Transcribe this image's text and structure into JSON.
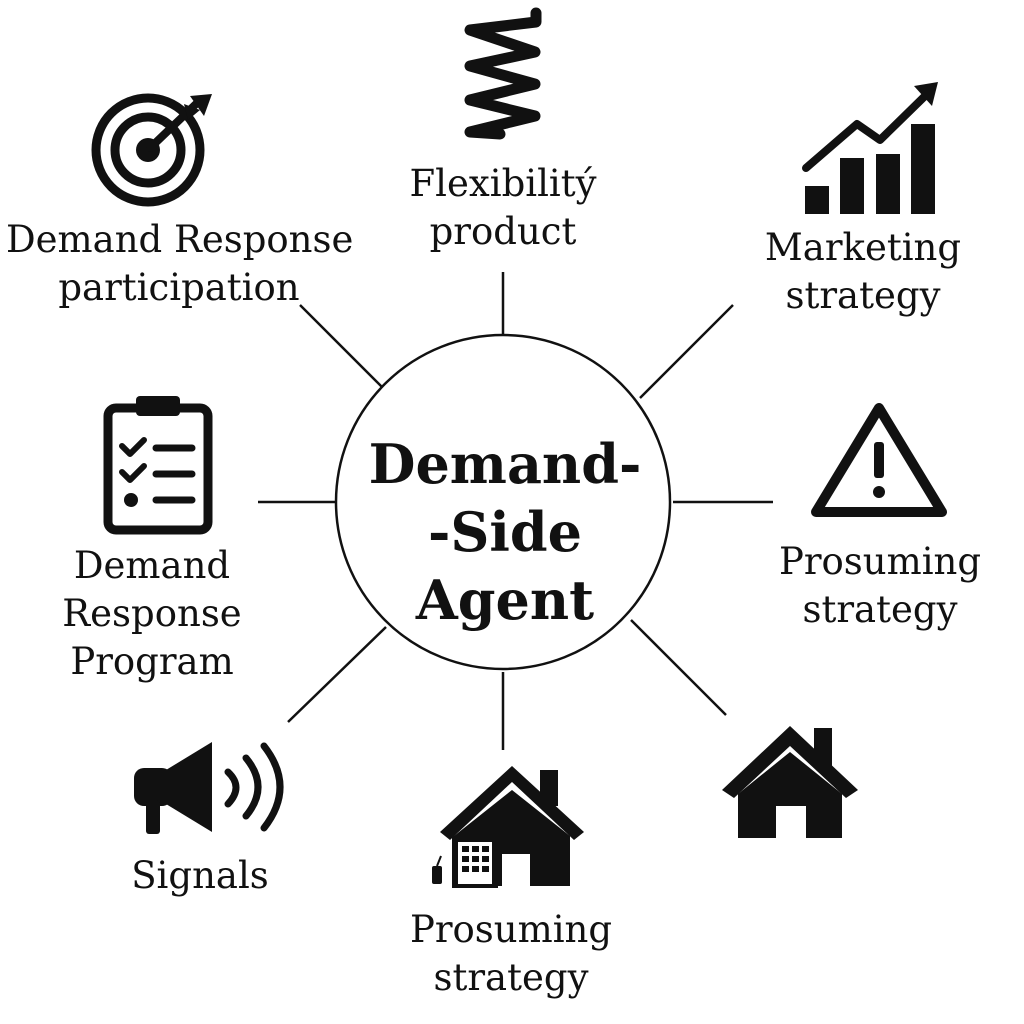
{
  "center": {
    "line1": "Demand-",
    "line2": "-Side",
    "line3": "Agent"
  },
  "nodes": {
    "flexibility": {
      "line1": "Flexibilitý",
      "line2": "product",
      "icon": "spring-icon"
    },
    "marketing": {
      "line1": "Marketing",
      "line2": "strategy",
      "icon": "bar-chart-trend-icon"
    },
    "dr_participation": {
      "line1": "Demand Response",
      "line2": "participation",
      "icon": "target-icon"
    },
    "dr_program": {
      "line1": "Demand",
      "line2": "Response",
      "line3": "Program",
      "icon": "clipboard-checklist-icon"
    },
    "prosuming_right": {
      "line1": "Prosuming",
      "line2": "strategy",
      "icon": "warning-icon"
    },
    "signals": {
      "line1": "Signals",
      "icon": "megaphone-icon"
    },
    "prosuming_bottom": {
      "line1": "Prosuming",
      "line2": "strategy",
      "icon": "house-building-icon"
    },
    "home": {
      "icon": "house-icon"
    }
  },
  "colors": {
    "ink": "#111111",
    "background": "#ffffff"
  }
}
